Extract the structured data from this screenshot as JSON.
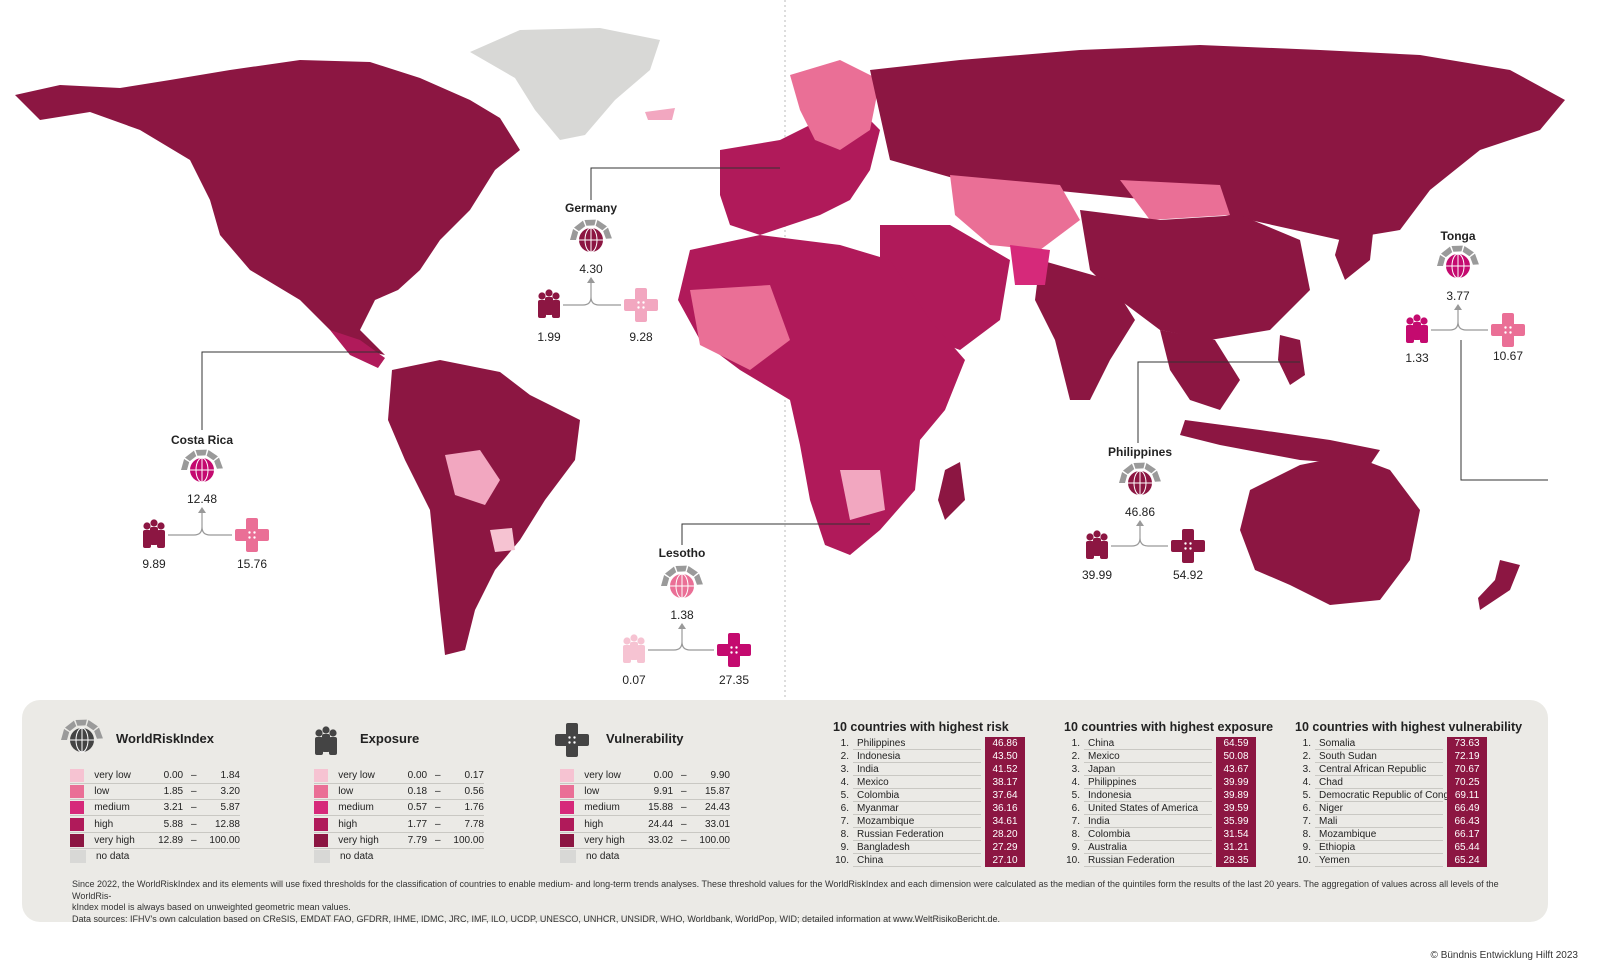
{
  "callouts": [
    {
      "id": "germany",
      "name": "Germany",
      "index": "4.30",
      "exposure": "1.99",
      "vulnerability": "9.28",
      "colors": {
        "icon": "#8c1642",
        "exposure": "#8c1642",
        "vulnerability": "#f2a7c0"
      }
    },
    {
      "id": "costa-rica",
      "name": "Costa Rica",
      "index": "12.48",
      "exposure": "9.89",
      "vulnerability": "15.76",
      "colors": {
        "icon": "#c40a6f",
        "exposure": "#8c1642",
        "vulnerability": "#ea6f96"
      }
    },
    {
      "id": "lesotho",
      "name": "Lesotho",
      "index": "1.38",
      "exposure": "0.07",
      "vulnerability": "27.35",
      "colors": {
        "icon": "#ea6f96",
        "exposure": "#f6c3d2",
        "vulnerability": "#c40a6f"
      }
    },
    {
      "id": "philippines",
      "name": "Philippines",
      "index": "46.86",
      "exposure": "39.99",
      "vulnerability": "54.92",
      "colors": {
        "icon": "#8c1642",
        "exposure": "#8c1642",
        "vulnerability": "#8c1642"
      }
    },
    {
      "id": "tonga",
      "name": "Tonga",
      "index": "3.77",
      "exposure": "1.33",
      "vulnerability": "10.67",
      "colors": {
        "icon": "#c40a6f",
        "exposure": "#c40a6f",
        "vulnerability": "#ea6f96"
      }
    }
  ],
  "legend": {
    "dimensions": [
      {
        "id": "worldriskindex",
        "title": "WorldRiskIndex",
        "icon": "globe-icon",
        "tiers": [
          {
            "label": "very low",
            "lo": "0.00",
            "hi": "1.84",
            "color": "#f6c3d2"
          },
          {
            "label": "low",
            "lo": "1.85",
            "hi": "3.20",
            "color": "#ea6f96"
          },
          {
            "label": "medium",
            "lo": "3.21",
            "hi": "5.87",
            "color": "#d6297a"
          },
          {
            "label": "high",
            "lo": "5.88",
            "hi": "12.88",
            "color": "#b01a5a"
          },
          {
            "label": "very high",
            "lo": "12.89",
            "hi": "100.00",
            "color": "#8c1642"
          },
          {
            "label": "no data",
            "lo": "",
            "hi": "",
            "color": "#d8d8d6"
          }
        ]
      },
      {
        "id": "exposure",
        "title": "Exposure",
        "icon": "people-icon",
        "tiers": [
          {
            "label": "very low",
            "lo": "0.00",
            "hi": "0.17",
            "color": "#f6c3d2"
          },
          {
            "label": "low",
            "lo": "0.18",
            "hi": "0.56",
            "color": "#ea6f96"
          },
          {
            "label": "medium",
            "lo": "0.57",
            "hi": "1.76",
            "color": "#d6297a"
          },
          {
            "label": "high",
            "lo": "1.77",
            "hi": "7.78",
            "color": "#b01a5a"
          },
          {
            "label": "very high",
            "lo": "7.79",
            "hi": "100.00",
            "color": "#8c1642"
          },
          {
            "label": "no data",
            "lo": "",
            "hi": "",
            "color": "#d8d8d6"
          }
        ]
      },
      {
        "id": "vulnerability",
        "title": "Vulnerability",
        "icon": "cross-icon",
        "tiers": [
          {
            "label": "very low",
            "lo": "0.00",
            "hi": "9.90",
            "color": "#f6c3d2"
          },
          {
            "label": "low",
            "lo": "9.91",
            "hi": "15.87",
            "color": "#ea6f96"
          },
          {
            "label": "medium",
            "lo": "15.88",
            "hi": "24.43",
            "color": "#d6297a"
          },
          {
            "label": "high",
            "lo": "24.44",
            "hi": "33.01",
            "color": "#b01a5a"
          },
          {
            "label": "very high",
            "lo": "33.02",
            "hi": "100.00",
            "color": "#8c1642"
          },
          {
            "label": "no data",
            "lo": "",
            "hi": "",
            "color": "#d8d8d6"
          }
        ]
      }
    ],
    "rankings": [
      {
        "title": "10 countries with highest risk",
        "rows": [
          [
            "1.",
            "Philippines",
            "46.86"
          ],
          [
            "2.",
            "Indonesia",
            "43.50"
          ],
          [
            "3.",
            "India",
            "41.52"
          ],
          [
            "4.",
            "Mexico",
            "38.17"
          ],
          [
            "5.",
            "Colombia",
            "37.64"
          ],
          [
            "6.",
            "Myanmar",
            "36.16"
          ],
          [
            "7.",
            "Mozambique",
            "34.61"
          ],
          [
            "8.",
            "Russian Federation",
            "28.20"
          ],
          [
            "9.",
            "Bangladesh",
            "27.29"
          ],
          [
            "10.",
            "China",
            "27.10"
          ]
        ]
      },
      {
        "title": "10 countries with highest exposure",
        "rows": [
          [
            "1.",
            "China",
            "64.59"
          ],
          [
            "2.",
            "Mexico",
            "50.08"
          ],
          [
            "3.",
            "Japan",
            "43.67"
          ],
          [
            "4.",
            "Philippines",
            "39.99"
          ],
          [
            "5.",
            "Indonesia",
            "39.89"
          ],
          [
            "6.",
            "United States of America",
            "39.59"
          ],
          [
            "7.",
            "India",
            "35.99"
          ],
          [
            "8.",
            "Colombia",
            "31.54"
          ],
          [
            "9.",
            "Australia",
            "31.21"
          ],
          [
            "10.",
            "Russian Federation",
            "28.35"
          ]
        ]
      },
      {
        "title": "10 countries with highest vulnerability",
        "rows": [
          [
            "1.",
            "Somalia",
            "73.63"
          ],
          [
            "2.",
            "South Sudan",
            "72.19"
          ],
          [
            "3.",
            "Central African Republic",
            "70.67"
          ],
          [
            "4.",
            "Chad",
            "70.25"
          ],
          [
            "5.",
            "Democratic Republic of Congo",
            "69.11"
          ],
          [
            "6.",
            "Niger",
            "66.49"
          ],
          [
            "7.",
            "Mali",
            "66.43"
          ],
          [
            "8.",
            "Mozambique",
            "66.17"
          ],
          [
            "9.",
            "Ethiopia",
            "65.44"
          ],
          [
            "10.",
            "Yemen",
            "65.24"
          ]
        ]
      }
    ]
  },
  "note": {
    "line1": "Since 2022, the WorldRiskIndex and its elements will use fixed thresholds for the classification of countries to enable medium- and long-term trends analyses. These threshold values for the WorldRiskIndex and each dimension were calculated as the median of the quintiles form the results of the last 20 years. The aggregation of values across all levels of the WorldRis-",
    "line2": "kIndex model is always based on unweighted geometric mean values.",
    "line3": "Data sources: IFHV's own calculation based on CReSIS, EMDAT FAO, GFDRR, IHME, IDMC, JRC, IMF, ILO, UCDP, UNESCO, UNHCR, UNSIDR, WHO, Worldbank, WorldPop, WID; detailed information at www.WeltRisikoBericht.de."
  },
  "copyright": "© Bündnis Entwicklung Hilft 2023",
  "colors": {
    "very_high": "#8c1642",
    "high": "#b01a5a",
    "medium": "#d6297a",
    "low": "#ea6f96",
    "very_low": "#f6c3d2",
    "no_data": "#d8d8d6",
    "panel": "#ebeae6"
  }
}
